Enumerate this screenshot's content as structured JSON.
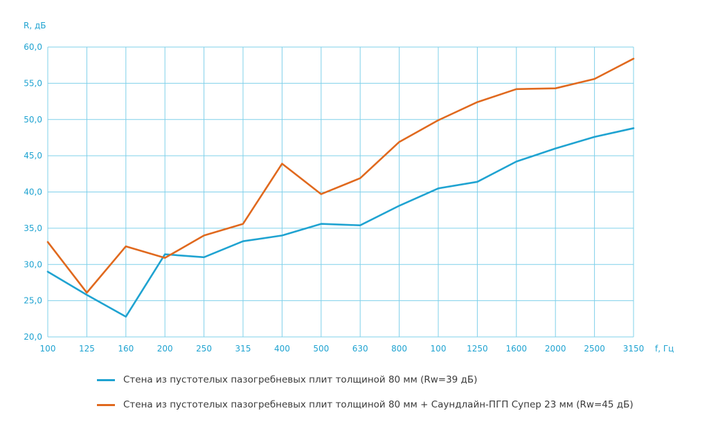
{
  "chart_data": {
    "type": "line",
    "ylabel": "R, дБ",
    "xlabel": "f, Гц",
    "categories": [
      "100",
      "125",
      "160",
      "200",
      "250",
      "315",
      "400",
      "500",
      "630",
      "800",
      "100",
      "1250",
      "1600",
      "2000",
      "2500",
      "3150"
    ],
    "yticks": [
      "20,0",
      "25,0",
      "30,0",
      "35,0",
      "40,0",
      "45,0",
      "50,0",
      "55,0",
      "60,0"
    ],
    "ylim": [
      20,
      60
    ],
    "grid": true,
    "legend_position": "bottom",
    "series": [
      {
        "name": "Стена из пустотелых пазогребневых плит толщиной 80 мм (Rw=39 дБ)",
        "color": "#1fa3d1",
        "values": [
          29.0,
          25.8,
          22.8,
          31.4,
          31.0,
          33.2,
          34.0,
          35.6,
          35.4,
          38.1,
          40.5,
          41.4,
          44.2,
          46.0,
          47.6,
          48.8
        ]
      },
      {
        "name": "Стена из пустотелых пазогребневых плит толщиной 80 мм + Саундлайн-ПГП Супер 23 мм (Rw=45 дБ)",
        "color": "#e0691e",
        "values": [
          33.1,
          26.1,
          32.5,
          30.9,
          34.0,
          35.6,
          43.9,
          39.7,
          41.9,
          46.9,
          49.9,
          52.4,
          54.2,
          54.3,
          55.6,
          58.4
        ]
      }
    ]
  }
}
